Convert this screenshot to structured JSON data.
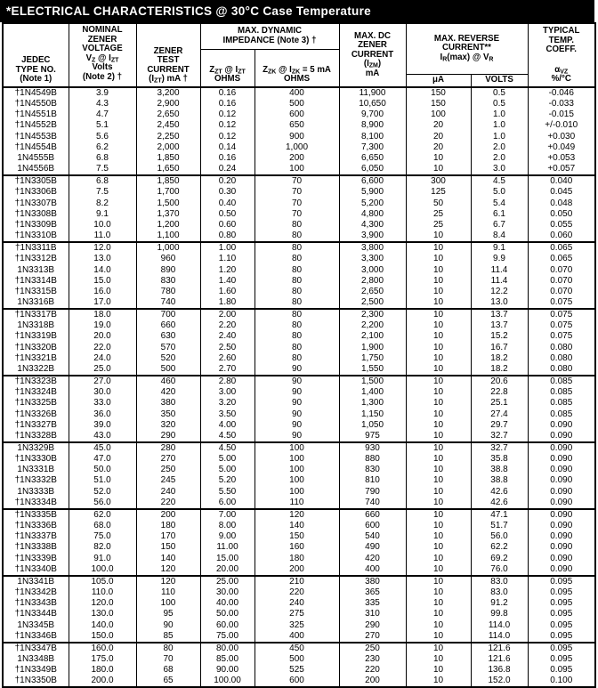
{
  "title": "*ELECTRICAL CHARACTERISTICS @ 30°C Case Temperature",
  "table": {
    "header": {
      "jedec": "JEDEC\nTYPE NO.\n(Note 1)",
      "nominal": "NOMINAL\nZENER\nVOLTAGE\nV_{Z} @ I_{ZT}\nVolts\n(Note 2) †",
      "test": "ZENER\nTEST\nCURRENT\n(I_{ZT}) mA †",
      "impedance_group": "MAX. DYNAMIC\nIMPEDANCE (Note 3) †",
      "zzt": "Z_{ZT} @ I_{ZT}\nOHMS",
      "zzk": "Z_{ZK} @ I_{ZK} = 5 mA\nOHMS",
      "izm": "MAX. DC\nZENER\nCURRENT\n(I_{ZM})\nmA",
      "reverse_group": "MAX. REVERSE\nCURRENT**\nI_{R}(max) @ V_{R}",
      "ua": "μA",
      "volts": "VOLTS",
      "tc_top": "TYPICAL\nTEMP.\nCOEFF.",
      "tc_bottom": "α_{VZ}\n%/°C"
    },
    "columns": [
      "type",
      "vz",
      "izt",
      "zzt",
      "zzk",
      "izm",
      "ir-ua",
      "vr-volts",
      "temp-coeff"
    ],
    "groups": [
      [
        [
          "†1N4549B",
          "3.9",
          "3,200",
          "0.16",
          "400",
          "11,900",
          "150",
          "0.5",
          "-0.046"
        ],
        [
          "†1N4550B",
          "4.3",
          "2,900",
          "0.16",
          "500",
          "10,650",
          "150",
          "0.5",
          "-0.033"
        ],
        [
          "†1N4551B",
          "4.7",
          "2,650",
          "0.12",
          "600",
          "9,700",
          "100",
          "1.0",
          "-0.015"
        ],
        [
          "†1N4552B",
          "5.1",
          "2,450",
          "0.12",
          "650",
          "8,900",
          "20",
          "1.0",
          "+/-0.010"
        ],
        [
          "†1N4553B",
          "5.6",
          "2,250",
          "0.12",
          "900",
          "8,100",
          "20",
          "1.0",
          "+0.030"
        ],
        [
          "†1N4554B",
          "6.2",
          "2,000",
          "0.14",
          "1,000",
          "7,300",
          "20",
          "2.0",
          "+0.049"
        ],
        [
          "1N4555B",
          "6.8",
          "1,850",
          "0.16",
          "200",
          "6,650",
          "10",
          "2.0",
          "+0.053"
        ],
        [
          "1N4556B",
          "7.5",
          "1,650",
          "0.24",
          "100",
          "6,050",
          "10",
          "3.0",
          "+0.057"
        ]
      ],
      [
        [
          "†1N3305B",
          "6.8",
          "1,850",
          "0.20",
          "70",
          "6,600",
          "300",
          "4.5",
          "0.040"
        ],
        [
          "†1N3306B",
          "7.5",
          "1,700",
          "0.30",
          "70",
          "5,900",
          "125",
          "5.0",
          "0.045"
        ],
        [
          "†1N3307B",
          "8.2",
          "1,500",
          "0.40",
          "70",
          "5,200",
          "50",
          "5.4",
          "0.048"
        ],
        [
          "†1N3308B",
          "9.1",
          "1,370",
          "0.50",
          "70",
          "4,800",
          "25",
          "6.1",
          "0.050"
        ],
        [
          "†1N3309B",
          "10.0",
          "1,200",
          "0.60",
          "80",
          "4,300",
          "25",
          "6.7",
          "0.055"
        ],
        [
          "†1N3310B",
          "11.0",
          "1,100",
          "0.80",
          "80",
          "3,900",
          "10",
          "8.4",
          "0.060"
        ]
      ],
      [
        [
          "†1N3311B",
          "12.0",
          "1,000",
          "1.00",
          "80",
          "3,800",
          "10",
          "9.1",
          "0.065"
        ],
        [
          "†1N3312B",
          "13.0",
          "960",
          "1.10",
          "80",
          "3,300",
          "10",
          "9.9",
          "0.065"
        ],
        [
          "1N3313B",
          "14.0",
          "890",
          "1.20",
          "80",
          "3,000",
          "10",
          "11.4",
          "0.070"
        ],
        [
          "†1N3314B",
          "15.0",
          "830",
          "1.40",
          "80",
          "2,800",
          "10",
          "11.4",
          "0.070"
        ],
        [
          "†1N3315B",
          "16.0",
          "780",
          "1.60",
          "80",
          "2,650",
          "10",
          "12.2",
          "0.070"
        ],
        [
          "1N3316B",
          "17.0",
          "740",
          "1.80",
          "80",
          "2,500",
          "10",
          "13.0",
          "0.075"
        ]
      ],
      [
        [
          "†1N3317B",
          "18.0",
          "700",
          "2.00",
          "80",
          "2,300",
          "10",
          "13.7",
          "0.075"
        ],
        [
          "1N3318B",
          "19.0",
          "660",
          "2.20",
          "80",
          "2,200",
          "10",
          "13.7",
          "0.075"
        ],
        [
          "†1N3319B",
          "20.0",
          "630",
          "2.40",
          "80",
          "2,100",
          "10",
          "15.2",
          "0.075"
        ],
        [
          "†1N3320B",
          "22.0",
          "570",
          "2.50",
          "80",
          "1,900",
          "10",
          "16.7",
          "0.080"
        ],
        [
          "†1N3321B",
          "24.0",
          "520",
          "2.60",
          "80",
          "1,750",
          "10",
          "18.2",
          "0.080"
        ],
        [
          "1N3322B",
          "25.0",
          "500",
          "2.70",
          "90",
          "1,550",
          "10",
          "18.2",
          "0.080"
        ]
      ],
      [
        [
          "†1N3323B",
          "27.0",
          "460",
          "2.80",
          "90",
          "1,500",
          "10",
          "20.6",
          "0.085"
        ],
        [
          "†1N3324B",
          "30.0",
          "420",
          "3.00",
          "90",
          "1,400",
          "10",
          "22.8",
          "0.085"
        ],
        [
          "†1N3325B",
          "33.0",
          "380",
          "3.20",
          "90",
          "1,300",
          "10",
          "25.1",
          "0.085"
        ],
        [
          "†1N3326B",
          "36.0",
          "350",
          "3.50",
          "90",
          "1,150",
          "10",
          "27.4",
          "0.085"
        ],
        [
          "†1N3327B",
          "39.0",
          "320",
          "4.00",
          "90",
          "1,050",
          "10",
          "29.7",
          "0.090"
        ],
        [
          "†1N3328B",
          "43.0",
          "290",
          "4.50",
          "90",
          "975",
          "10",
          "32.7",
          "0.090"
        ]
      ],
      [
        [
          "1N3329B",
          "45.0",
          "280",
          "4.50",
          "100",
          "930",
          "10",
          "32.7",
          "0.090"
        ],
        [
          "†1N3330B",
          "47.0",
          "270",
          "5.00",
          "100",
          "880",
          "10",
          "35.8",
          "0.090"
        ],
        [
          "1N3331B",
          "50.0",
          "250",
          "5.00",
          "100",
          "830",
          "10",
          "38.8",
          "0.090"
        ],
        [
          "†1N3332B",
          "51.0",
          "245",
          "5.20",
          "100",
          "810",
          "10",
          "38.8",
          "0.090"
        ],
        [
          "1N3333B",
          "52.0",
          "240",
          "5.50",
          "100",
          "790",
          "10",
          "42.6",
          "0.090"
        ],
        [
          "†1N3334B",
          "56.0",
          "220",
          "6.00",
          "110",
          "740",
          "10",
          "42.6",
          "0.090"
        ]
      ],
      [
        [
          "†1N3335B",
          "62.0",
          "200",
          "7.00",
          "120",
          "660",
          "10",
          "47.1",
          "0.090"
        ],
        [
          "†1N3336B",
          "68.0",
          "180",
          "8.00",
          "140",
          "600",
          "10",
          "51.7",
          "0.090"
        ],
        [
          "†1N3337B",
          "75.0",
          "170",
          "9.00",
          "150",
          "540",
          "10",
          "56.0",
          "0.090"
        ],
        [
          "†1N3338B",
          "82.0",
          "150",
          "11.00",
          "160",
          "490",
          "10",
          "62.2",
          "0.090"
        ],
        [
          "†1N3339B",
          "91.0",
          "140",
          "15.00",
          "180",
          "420",
          "10",
          "69.2",
          "0.090"
        ],
        [
          "†1N3340B",
          "100.0",
          "120",
          "20.00",
          "200",
          "400",
          "10",
          "76.0",
          "0.090"
        ]
      ],
      [
        [
          "1N3341B",
          "105.0",
          "120",
          "25.00",
          "210",
          "380",
          "10",
          "83.0",
          "0.095"
        ],
        [
          "†1N3342B",
          "110.0",
          "110",
          "30.00",
          "220",
          "365",
          "10",
          "83.0",
          "0.095"
        ],
        [
          "†1N3343B",
          "120.0",
          "100",
          "40.00",
          "240",
          "335",
          "10",
          "91.2",
          "0.095"
        ],
        [
          "†1N3344B",
          "130.0",
          "95",
          "50.00",
          "275",
          "310",
          "10",
          "99.8",
          "0.095"
        ],
        [
          "1N3345B",
          "140.0",
          "90",
          "60.00",
          "325",
          "290",
          "10",
          "114.0",
          "0.095"
        ],
        [
          "†1N3346B",
          "150.0",
          "85",
          "75.00",
          "400",
          "270",
          "10",
          "114.0",
          "0.095"
        ]
      ],
      [
        [
          "†1N3347B",
          "160.0",
          "80",
          "80.00",
          "450",
          "250",
          "10",
          "121.6",
          "0.095"
        ],
        [
          "1N3348B",
          "175.0",
          "70",
          "85.00",
          "500",
          "230",
          "10",
          "121.6",
          "0.095"
        ],
        [
          "†1N3349B",
          "180.0",
          "68",
          "90.00",
          "525",
          "220",
          "10",
          "136.8",
          "0.095"
        ],
        [
          "†1N3350B",
          "200.0",
          "65",
          "100.00",
          "600",
          "200",
          "10",
          "152.0",
          "0.100"
        ]
      ]
    ]
  }
}
